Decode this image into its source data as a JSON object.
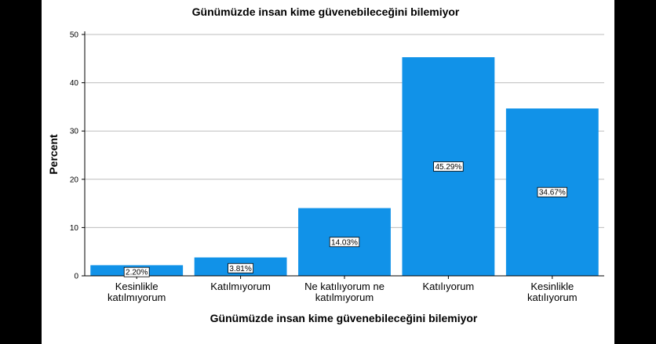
{
  "chart_data": {
    "type": "bar",
    "title": "Günümüzde insan kime güvenebileceğini bilemiyor",
    "xlabel": "Günümüzde insan kime güvenebileceğini bilemiyor",
    "ylabel": "Percent",
    "ylim": [
      0,
      50
    ],
    "yticks": [
      0,
      10,
      20,
      30,
      40,
      50
    ],
    "grid": true,
    "categories": [
      [
        "Kesinlikle",
        "katılmıyorum"
      ],
      [
        "Katılmıyorum"
      ],
      [
        "Ne katılıyorum ne",
        "katılmıyorum"
      ],
      [
        "Katılıyorum"
      ],
      [
        "Kesinlikle",
        "katılıyorum"
      ]
    ],
    "values": [
      2.2,
      3.81,
      14.03,
      45.29,
      34.67
    ],
    "data_labels": [
      "2.20%",
      "3.81%",
      "14.03%",
      "45.29%",
      "34.67%"
    ],
    "bar_color": "#1192e8"
  }
}
